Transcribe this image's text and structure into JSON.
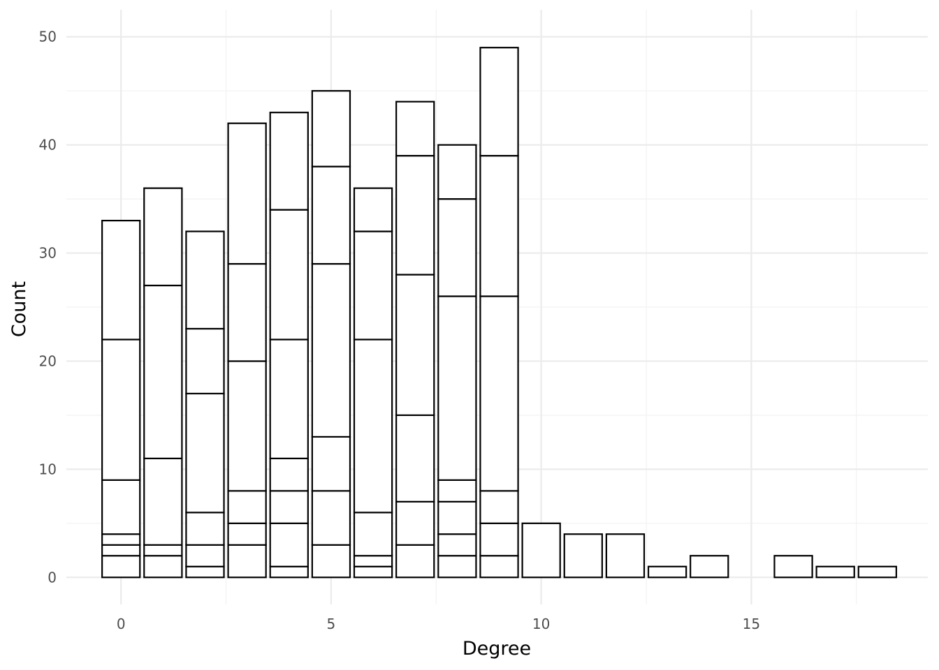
{
  "chart_data": {
    "type": "bar",
    "stacked": true,
    "xlabel": "Degree",
    "ylabel": "Count",
    "xlim": [
      -1.3,
      19.2
    ],
    "ylim": [
      -2.5,
      52.5
    ],
    "x_ticks": [
      0,
      5,
      10,
      15
    ],
    "y_ticks": [
      0,
      10,
      20,
      30,
      40,
      50
    ],
    "grid": true,
    "legend": "none",
    "bar_fill": "#ffffff",
    "bar_outline": "#000000",
    "bars": [
      {
        "x": 0,
        "total": 33,
        "boundaries": [
          0,
          2,
          3,
          4,
          9,
          22,
          33
        ]
      },
      {
        "x": 1,
        "total": 36,
        "boundaries": [
          0,
          2,
          3,
          11,
          27,
          36
        ]
      },
      {
        "x": 2,
        "total": 32,
        "boundaries": [
          0,
          1,
          3,
          6,
          17,
          23,
          32
        ]
      },
      {
        "x": 3,
        "total": 42,
        "boundaries": [
          0,
          3,
          5,
          8,
          20,
          29,
          42
        ]
      },
      {
        "x": 4,
        "total": 43,
        "boundaries": [
          0,
          1,
          5,
          8,
          11,
          22,
          34,
          43
        ]
      },
      {
        "x": 5,
        "total": 45,
        "boundaries": [
          0,
          3,
          8,
          13,
          29,
          38,
          45
        ]
      },
      {
        "x": 6,
        "total": 36,
        "boundaries": [
          0,
          1,
          2,
          6,
          22,
          32,
          36
        ]
      },
      {
        "x": 7,
        "total": 44,
        "boundaries": [
          0,
          3,
          7,
          15,
          28,
          39,
          44
        ]
      },
      {
        "x": 8,
        "total": 40,
        "boundaries": [
          0,
          2,
          4,
          7,
          9,
          26,
          35,
          40
        ]
      },
      {
        "x": 9,
        "total": 49,
        "boundaries": [
          0,
          2,
          5,
          8,
          26,
          39,
          49
        ]
      },
      {
        "x": 10,
        "total": 5,
        "boundaries": [
          0,
          5
        ]
      },
      {
        "x": 11,
        "total": 4,
        "boundaries": [
          0,
          4
        ]
      },
      {
        "x": 12,
        "total": 4,
        "boundaries": [
          0,
          4
        ]
      },
      {
        "x": 13,
        "total": 1,
        "boundaries": [
          0,
          1
        ]
      },
      {
        "x": 14,
        "total": 2,
        "boundaries": [
          0,
          2
        ]
      },
      {
        "x": 16,
        "total": 2,
        "boundaries": [
          0,
          2
        ]
      },
      {
        "x": 17,
        "total": 1,
        "boundaries": [
          0,
          1
        ]
      },
      {
        "x": 18,
        "total": 1,
        "boundaries": [
          0,
          1
        ]
      }
    ]
  }
}
